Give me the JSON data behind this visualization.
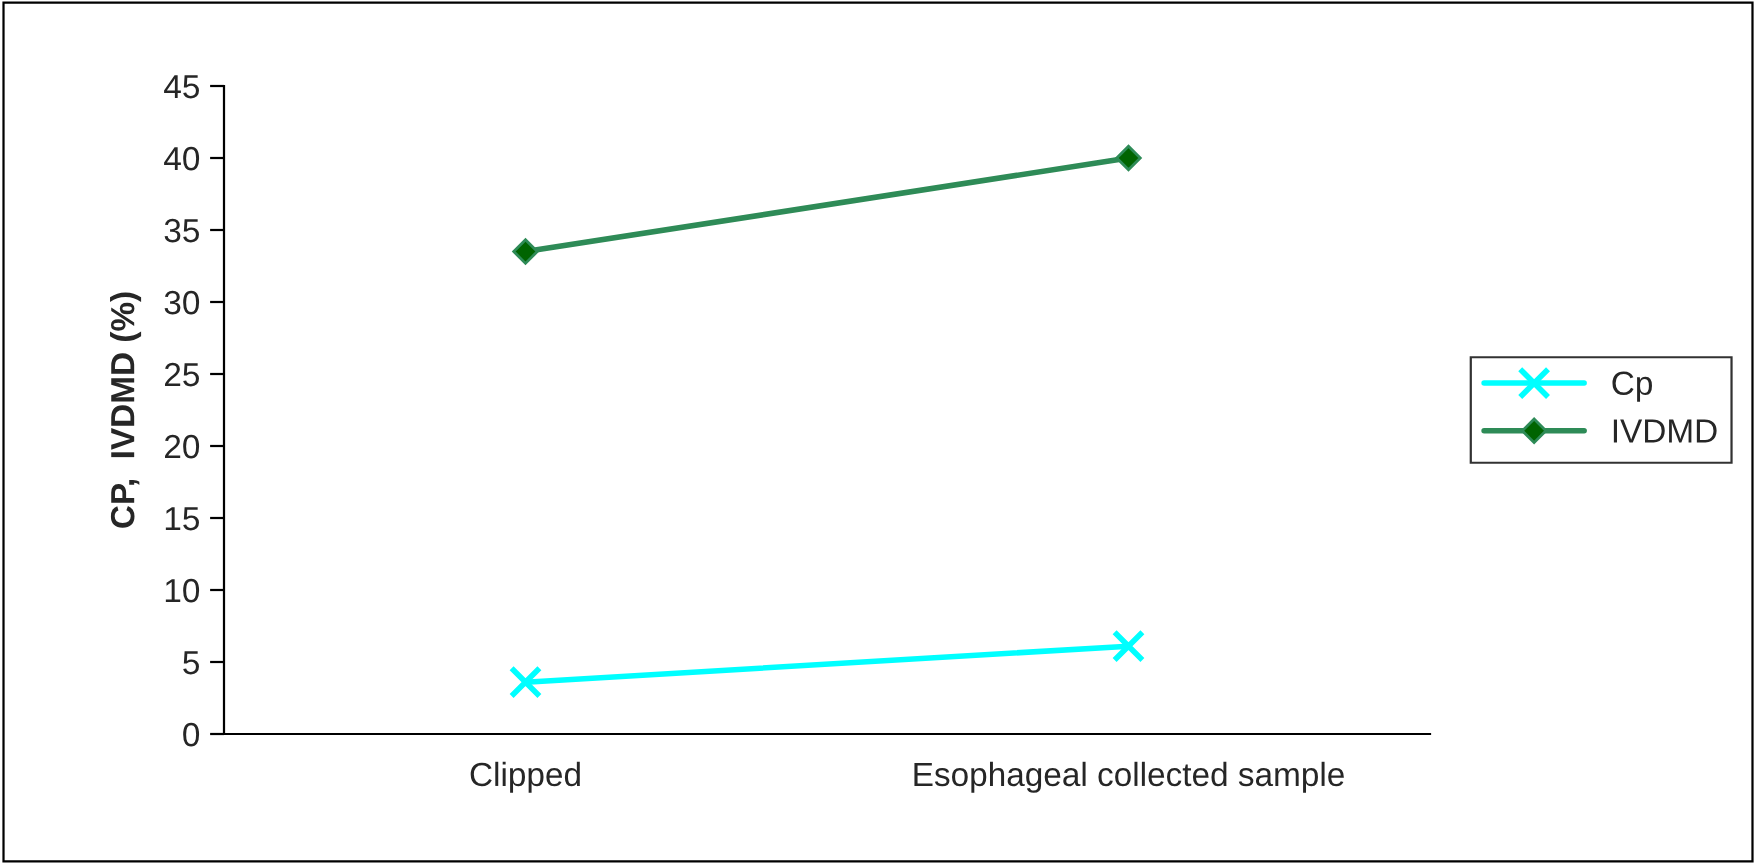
{
  "chart_data": {
    "type": "line",
    "ylabel": "CP,  IVDMD (%)",
    "categories": [
      "Clipped",
      "Esophageal collected sample"
    ],
    "series": [
      {
        "name": "Cp",
        "color": "#00ffff",
        "marker": "cross",
        "values": [
          3.6,
          6.1
        ]
      },
      {
        "name": "IVDMD",
        "color": "#2e8b57",
        "marker": "diamond",
        "values": [
          33.5,
          40.0
        ]
      }
    ],
    "ylim": [
      0,
      45
    ],
    "yticks": [
      0,
      5,
      10,
      15,
      20,
      25,
      30,
      35,
      40,
      45
    ],
    "grid": false,
    "legend": "right"
  }
}
